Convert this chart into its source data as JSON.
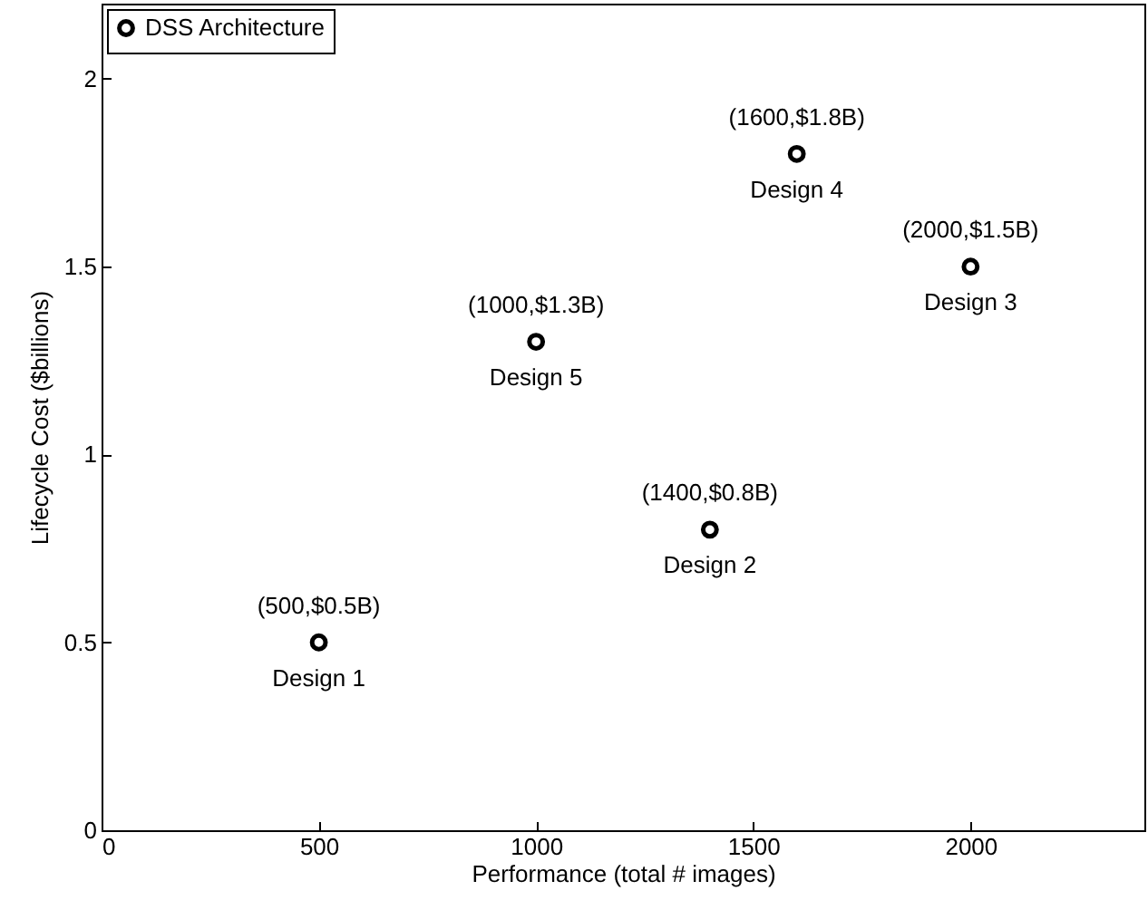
{
  "chart_data": {
    "type": "scatter",
    "xlabel": "Performance (total # images)",
    "ylabel": "Lifecycle Cost ($billions)",
    "x": [
      500,
      1400,
      2000,
      1600,
      1000
    ],
    "series": [
      {
        "name": "DSS Architecture",
        "color": "#000000",
        "values": [
          0.5,
          0.8,
          1.5,
          1.8,
          1.3
        ]
      }
    ],
    "xlim": [
      0,
      2400
    ],
    "xticks": [
      0,
      500,
      1000,
      1500,
      2000
    ],
    "ylim": [
      0,
      2.2
    ],
    "yticks": [
      0,
      0.5,
      1,
      1.5,
      2
    ],
    "marker": "circle",
    "legend": "top left",
    "grid": false,
    "annotations": [
      {
        "text": "(500,$0.5B)",
        "x": 500,
        "y": 0.5
      },
      {
        "text": "Design 1",
        "x": 500,
        "y": 0.5
      },
      {
        "text": "(1400,$0.8B)",
        "x": 1400,
        "y": 0.8
      },
      {
        "text": "Design 2",
        "x": 1400,
        "y": 0.8
      },
      {
        "text": "(2000,$1.5B)",
        "x": 2000,
        "y": 1.5
      },
      {
        "text": "Design 3",
        "x": 2000,
        "y": 1.5
      },
      {
        "text": "(1600,$1.8B)",
        "x": 1600,
        "y": 1.8
      },
      {
        "text": "Design 4",
        "x": 1600,
        "y": 1.8
      },
      {
        "text": "(1000,$1.3B)",
        "x": 1000,
        "y": 1.3
      },
      {
        "text": "Design 5",
        "x": 1000,
        "y": 1.3
      }
    ]
  }
}
